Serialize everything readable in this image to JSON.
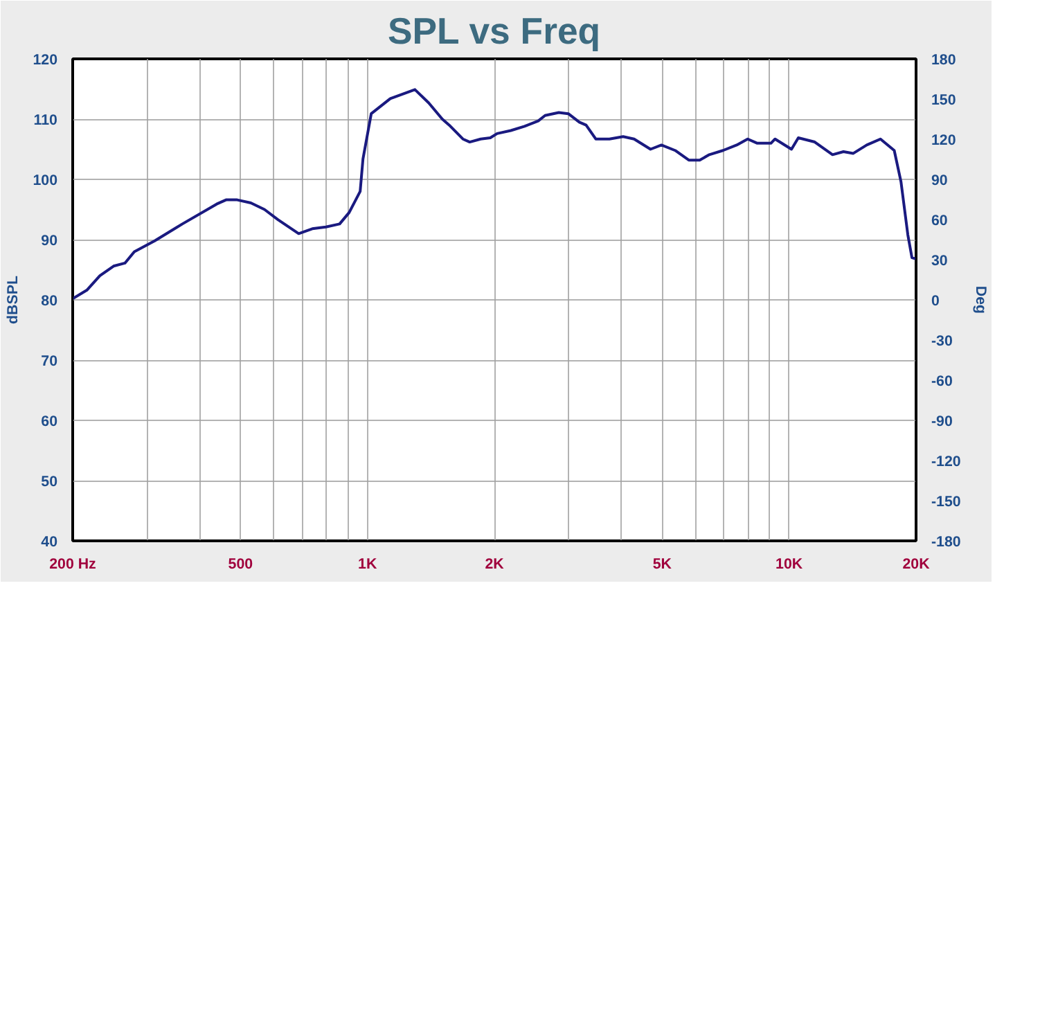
{
  "chart_data": {
    "type": "line",
    "title": "SPL vs Freq",
    "ylabel": "dBSPL",
    "y2label": "Deg",
    "x": [
      200,
      216,
      232,
      250,
      266,
      280,
      313,
      364,
      439,
      462,
      491,
      529,
      570,
      614,
      687,
      740,
      797,
      859,
      905,
      961,
      976,
      1021,
      1133,
      1296,
      1397,
      1505,
      1563,
      1684,
      1748,
      1856,
      1956,
      2030,
      2188,
      2358,
      2541,
      2638,
      2843,
      2995,
      3180,
      3300,
      3479,
      3749,
      4040,
      4289,
      4692,
      4980,
      5366,
      5782,
      6138,
      6468,
      6970,
      7511,
      7975,
      8404,
      9055,
      9261,
      10130,
      10516,
      11501,
      12676,
      13457,
      14181,
      15279,
      16466,
      17754,
      18421,
      19122,
      19558,
      20000
    ],
    "series": [
      {
        "color": "#1a1a80",
        "values": [
          80.2,
          81.6,
          84,
          85.6,
          86.1,
          88,
          89.8,
          92.6,
          95.9,
          96.6,
          96.6,
          96.1,
          95,
          93.3,
          91,
          91.8,
          92.1,
          92.6,
          94.5,
          98,
          103.4,
          110.9,
          113.4,
          114.9,
          112.7,
          110,
          109,
          106.7,
          106.2,
          106.7,
          106.9,
          107.6,
          108.1,
          108.8,
          109.7,
          110.6,
          111.1,
          110.9,
          109.5,
          109,
          106.7,
          106.7,
          107.1,
          106.7,
          105,
          105.7,
          104.8,
          103.2,
          103.2,
          104.1,
          104.8,
          105.7,
          106.7,
          106,
          106,
          106.7,
          105,
          106.9,
          106.2,
          104.1,
          104.6,
          104.3,
          105.7,
          106.7,
          104.8,
          99.6,
          90.8,
          87,
          86.8
        ]
      }
    ],
    "log": "x",
    "xlim": [
      200,
      20000
    ],
    "ylim": [
      40,
      120
    ],
    "y2lim": [
      -180,
      180
    ],
    "xticks": [
      {
        "value": 200,
        "label": "200 Hz"
      },
      {
        "value": 300,
        "label": null
      },
      {
        "value": 400,
        "label": null
      },
      500,
      {
        "value": 600,
        "label": null
      },
      {
        "value": 700,
        "label": null
      },
      {
        "value": 800,
        "label": null
      },
      {
        "value": 900,
        "label": null
      },
      {
        "value": 1000,
        "label": "1K"
      },
      {
        "value": 2000,
        "label": "2K"
      },
      {
        "value": 3000,
        "label": null
      },
      {
        "value": 4000,
        "label": null
      },
      {
        "value": 5000,
        "label": "5K"
      },
      {
        "value": 6000,
        "label": null
      },
      {
        "value": 7000,
        "label": null
      },
      {
        "value": 8000,
        "label": null
      },
      {
        "value": 9000,
        "label": null
      },
      {
        "value": 10000,
        "label": "10K"
      },
      {
        "value": 20000,
        "label": "20K"
      }
    ],
    "yticks": [
      40,
      50,
      60,
      70,
      80,
      90,
      100,
      110,
      120
    ],
    "y2ticks": [
      -180,
      -150,
      -120,
      -90,
      -60,
      -30,
      0,
      30,
      60,
      90,
      120,
      150,
      180
    ],
    "grid": true,
    "marker": "none",
    "line_style": "solid"
  }
}
